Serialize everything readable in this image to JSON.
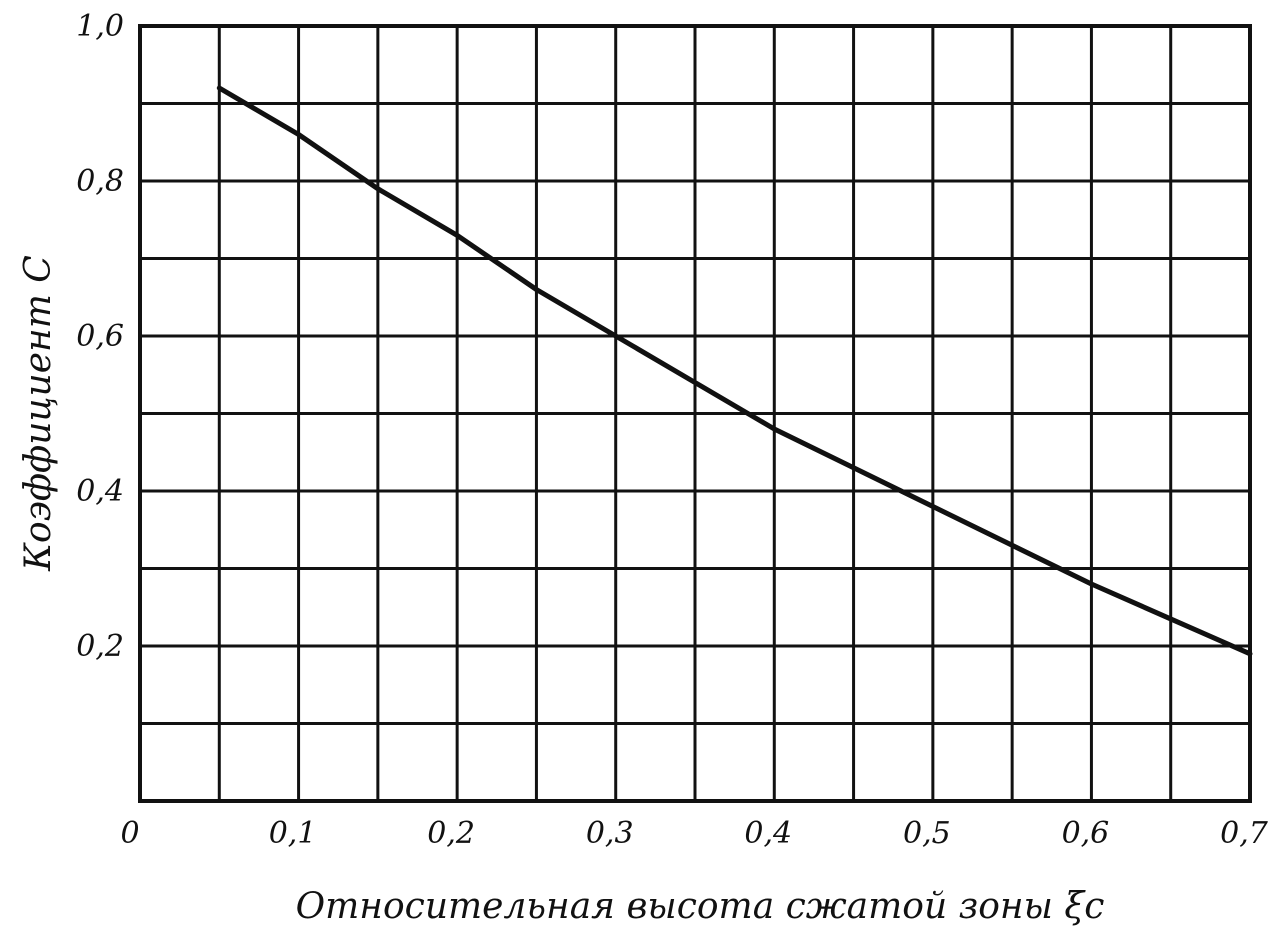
{
  "chart_data": {
    "type": "line",
    "title": "",
    "xlabel": "Относительная высота сжатой зоны ξc",
    "ylabel": "Коэффициент C",
    "xlim": [
      0,
      0.7
    ],
    "ylim": [
      0,
      1.0
    ],
    "grid": true,
    "x_ticks": [
      "0",
      "0,1",
      "0,2",
      "0,3",
      "0,4",
      "0,5",
      "0,6",
      "0,7"
    ],
    "y_ticks": [
      "0,2",
      "0,4",
      "0,6",
      "0,8",
      "1,0"
    ],
    "series": [
      {
        "x": [
          0.05,
          0.1,
          0.15,
          0.2,
          0.25,
          0.3,
          0.35,
          0.4,
          0.45,
          0.5,
          0.55,
          0.6,
          0.65,
          0.7
        ],
        "y": [
          0.92,
          0.86,
          0.79,
          0.73,
          0.66,
          0.6,
          0.54,
          0.48,
          0.43,
          0.38,
          0.33,
          0.28,
          0.235,
          0.19
        ]
      }
    ]
  }
}
